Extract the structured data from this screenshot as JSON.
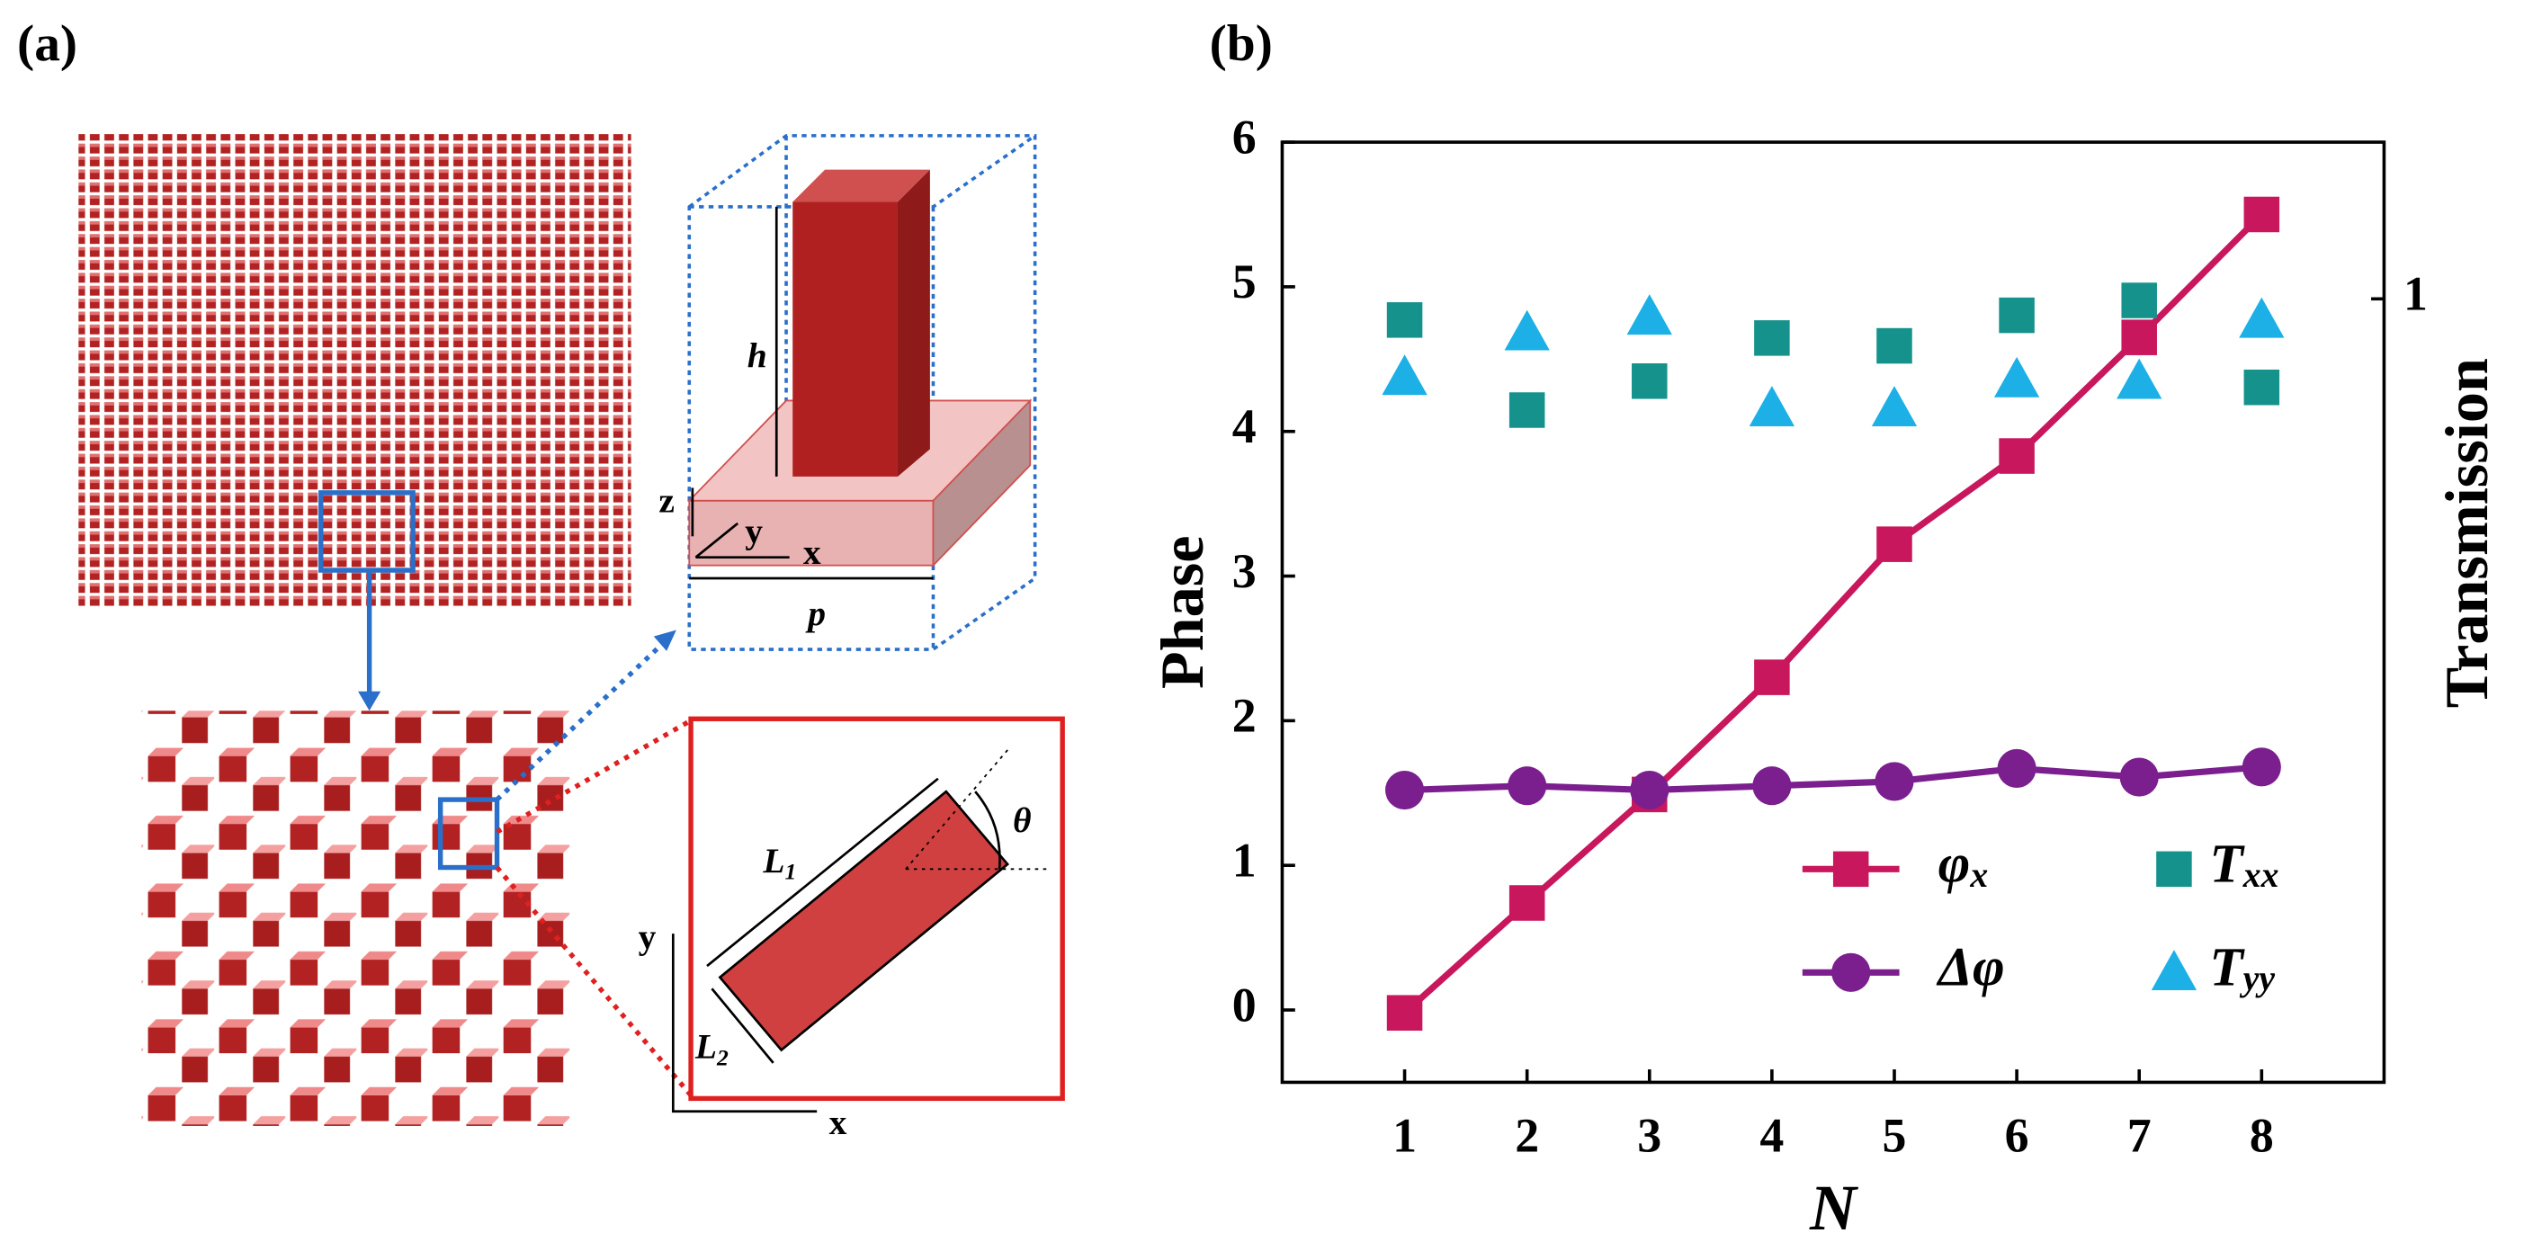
{
  "panel_a": {
    "label": "(a)",
    "labels": [
      "h",
      "z",
      "y",
      "x",
      "p",
      "L1",
      "L2",
      "θ",
      "y",
      "x"
    ]
  },
  "chart_data": {
    "type": "line",
    "label": "(b)",
    "x_label": "N",
    "y_label": "Phase",
    "y2_label": "Transmission",
    "x": [
      1,
      2,
      3,
      4,
      5,
      6,
      7,
      8
    ],
    "xlim": [
      0,
      9
    ],
    "xticks": [
      1,
      2,
      3,
      4,
      5,
      6,
      7,
      8
    ],
    "ylim": [
      -0.5,
      6
    ],
    "yticks": [
      0,
      1,
      2,
      3,
      4,
      5,
      6
    ],
    "y2lim": [
      0,
      1.2
    ],
    "y2ticks": [
      1
    ],
    "legend": "lower right",
    "series": [
      {
        "name": "φx",
        "color": "#c8175d",
        "marker": "square",
        "line": true,
        "values": [
          -0.02,
          0.74,
          1.49,
          2.3,
          3.22,
          3.83,
          4.65,
          5.5
        ]
      },
      {
        "name": "Δφ",
        "color": "#7b1e8e",
        "marker": "circle",
        "line": true,
        "values": [
          1.52,
          1.55,
          1.52,
          1.55,
          1.58,
          1.67,
          1.61,
          1.68
        ]
      },
      {
        "name": "Txx",
        "color": "#16928c",
        "marker": "square",
        "line": false,
        "axis": "y2",
        "values": [
          0.973,
          0.858,
          0.895,
          0.95,
          0.94,
          0.979,
          0.998,
          0.887
        ]
      },
      {
        "name": "Tyy",
        "color": "#1cb0e6",
        "marker": "triangle",
        "line": false,
        "axis": "y2",
        "values": [
          0.9,
          0.957,
          0.977,
          0.86,
          0.86,
          0.897,
          0.895,
          0.973
        ]
      }
    ]
  }
}
